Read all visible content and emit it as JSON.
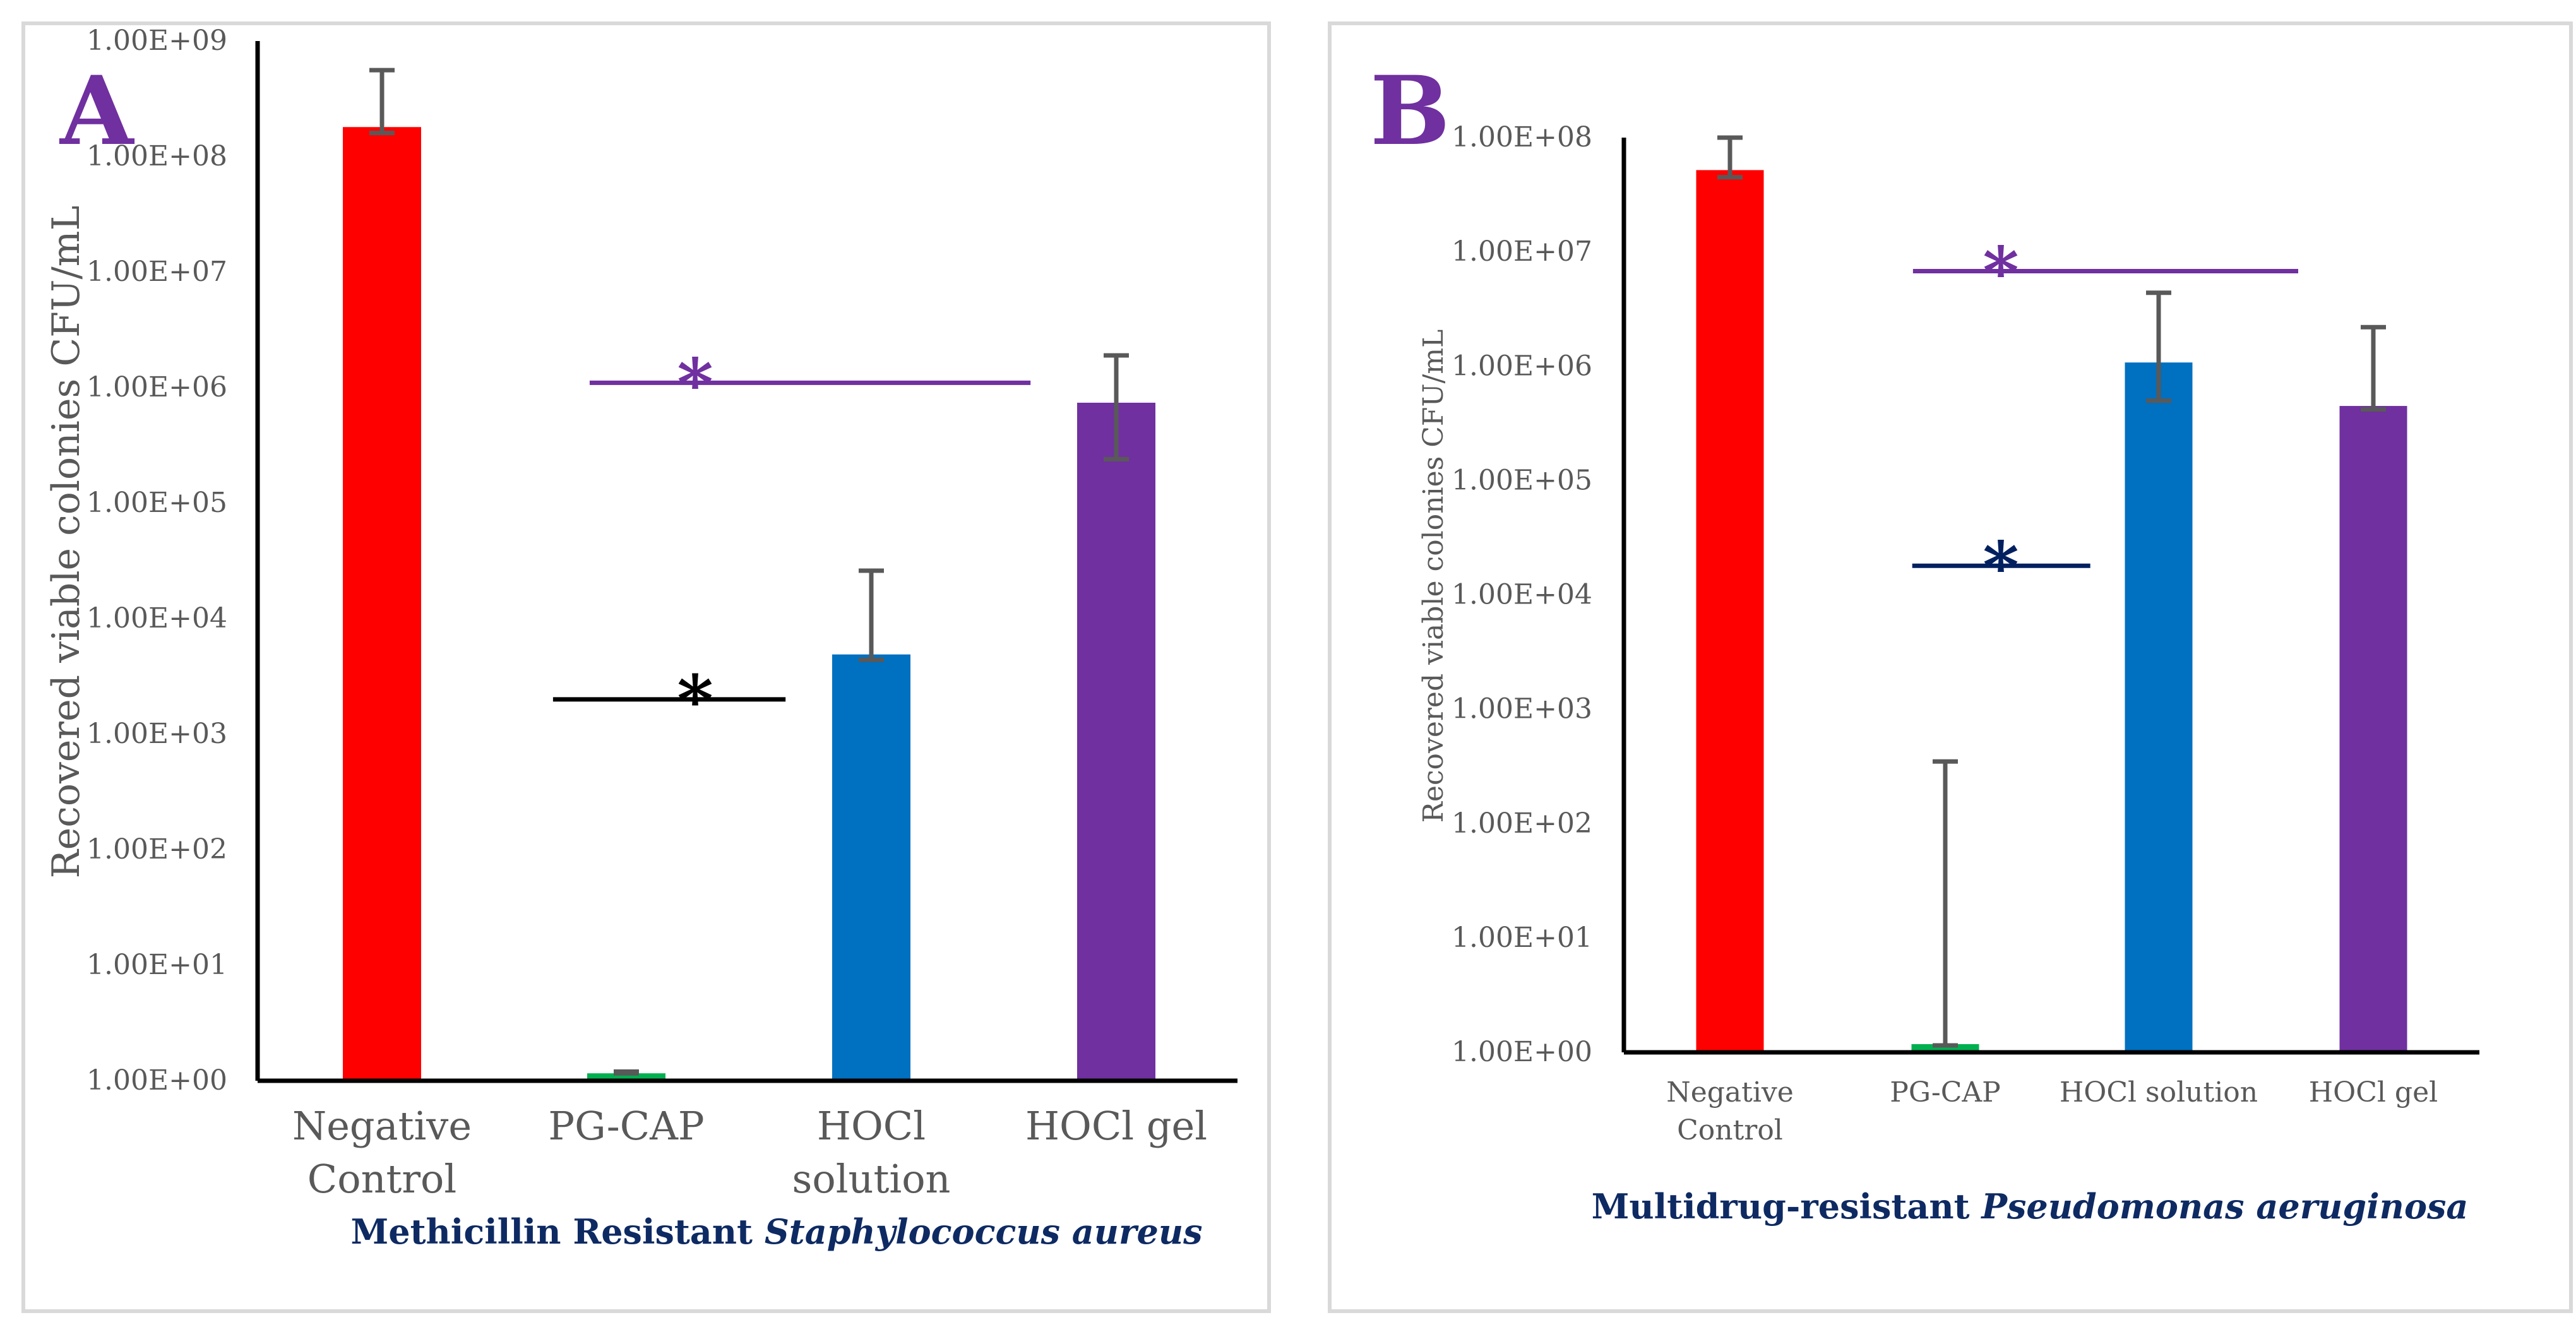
{
  "chart_data": [
    {
      "type": "bar",
      "panel_letter": "A",
      "subtitle_prefix": "Methicillin Resistant",
      "subtitle_italic": "Staphylococcus aureus",
      "ylabel": "Recovered viable colonies CFU/mL",
      "yscale": "log",
      "ylim": [
        1,
        1000000000
      ],
      "yticks": [
        "1.00E+00",
        "1.00E+01",
        "1.00E+02",
        "1.00E+03",
        "1.00E+04",
        "1.00E+05",
        "1.00E+06",
        "1.00E+07",
        "1.00E+08",
        "1.00E+09"
      ],
      "categories": [
        [
          "Negative",
          "Control"
        ],
        [
          "PG-CAP"
        ],
        [
          "HOCl",
          "solution"
        ],
        [
          "HOCl gel"
        ]
      ],
      "values": [
        180000000,
        1.16,
        4900,
        740000
      ],
      "error_low": [
        160000000,
        1.16,
        4400,
        240000
      ],
      "error_high": [
        560000000,
        1.2,
        26000,
        1900000
      ],
      "colors": [
        "#ff0000",
        "#00b050",
        "#0070c0",
        "#7030a0"
      ],
      "significance": [
        {
          "label": "*",
          "from": 1,
          "to": 3,
          "y": 1100000,
          "color": "#7030a0"
        },
        {
          "label": "*",
          "from": 1,
          "to": 2,
          "y": 2000,
          "color": "#000000"
        }
      ]
    },
    {
      "type": "bar",
      "panel_letter": "B",
      "subtitle_prefix": "Multidrug-resistant",
      "subtitle_italic": "Pseudomonas aeruginosa",
      "ylabel": "Recovered viable colonies CFU/mL",
      "yscale": "log",
      "ylim": [
        1,
        100000000
      ],
      "yticks": [
        "1.00E+00",
        "1.00E+01",
        "1.00E+02",
        "1.00E+03",
        "1.00E+04",
        "1.00E+05",
        "1.00E+06",
        "1.00E+07",
        "1.00E+08"
      ],
      "categories": [
        [
          "Negative",
          "Control"
        ],
        [
          "PG-CAP"
        ],
        [
          "HOCl solution"
        ],
        [
          "HOCl gel"
        ]
      ],
      "values": [
        52000000,
        1.18,
        1080000,
        450000
      ],
      "error_low": [
        45000000,
        1.15,
        500000,
        420000
      ],
      "error_high": [
        100000000,
        350,
        4400000,
        2200000
      ],
      "colors": [
        "#ff0000",
        "#00b050",
        "#0070c0",
        "#7030a0"
      ],
      "significance": [
        {
          "label": "*",
          "from": 1,
          "to": 3,
          "y": 6800000,
          "color": "#7030a0"
        },
        {
          "label": "*",
          "from": 1,
          "to": 2,
          "y": 18000,
          "color": "#002060"
        }
      ]
    }
  ]
}
